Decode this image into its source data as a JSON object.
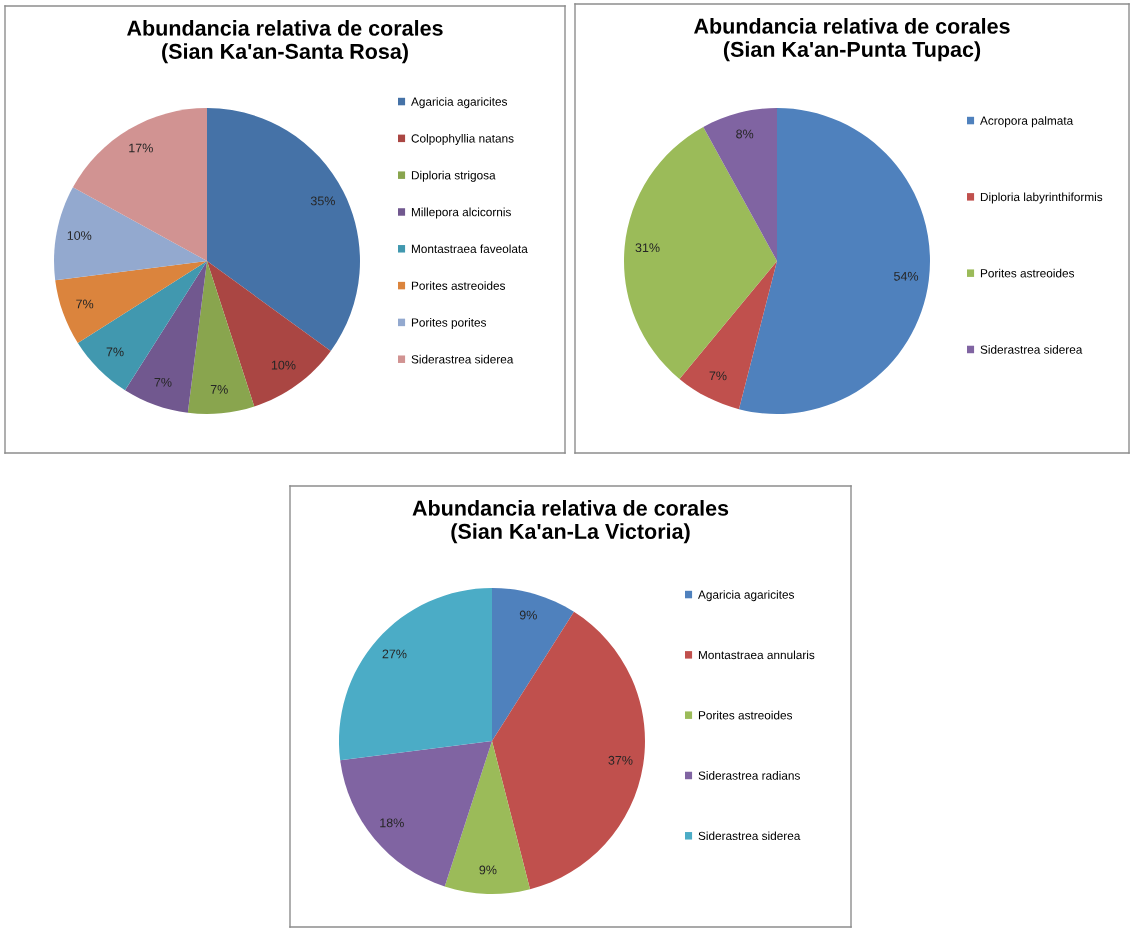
{
  "chart_data": [
    {
      "type": "pie",
      "title": "Abundancia relativa de corales\n(Sian Ka'an-Santa Rosa)",
      "categories": [
        "Agaricia agaricites",
        "Colpophyllia natans",
        "Diploria strigosa",
        "Millepora alcicornis",
        "Montastraea faveolata",
        "Porites astreoides",
        "Porites porites",
        "Siderastrea siderea"
      ],
      "values": [
        35,
        10,
        7,
        7,
        7,
        7,
        10,
        17
      ],
      "value_labels": [
        "35%",
        "10%",
        "7%",
        "7%",
        "7%",
        "7%",
        "10%",
        "17%"
      ],
      "colors": [
        "#4572a7",
        "#aa4643",
        "#89a54e",
        "#71588f",
        "#4198af",
        "#db843d",
        "#93a9cf",
        "#d19392"
      ],
      "legend": "right"
    },
    {
      "type": "pie",
      "title": "Abundancia relativa de corales\n(Sian Ka'an-Punta Tupac)",
      "categories": [
        "Acropora palmata",
        "Diploria labyrinthiformis",
        "Porites astreoides",
        "Siderastrea siderea"
      ],
      "values": [
        54,
        7,
        31,
        8
      ],
      "value_labels": [
        "54%",
        "7%",
        "31%",
        "8%"
      ],
      "colors": [
        "#4f81bd",
        "#c0504d",
        "#9bbb59",
        "#8064a2"
      ],
      "legend": "right"
    },
    {
      "type": "pie",
      "title": "Abundancia relativa de corales\n(Sian Ka'an-La Victoria)",
      "categories": [
        "Agaricia agaricites",
        "Montastraea annularis",
        "Porites astreoides",
        "Siderastrea radians",
        "Siderastrea siderea"
      ],
      "values": [
        9,
        37,
        9,
        18,
        27
      ],
      "value_labels": [
        "9%",
        "37%",
        "9%",
        "18%",
        "27%"
      ],
      "colors": [
        "#4f81bd",
        "#c0504d",
        "#9bbb59",
        "#8064a2",
        "#4bacc6"
      ],
      "legend": "right"
    }
  ]
}
